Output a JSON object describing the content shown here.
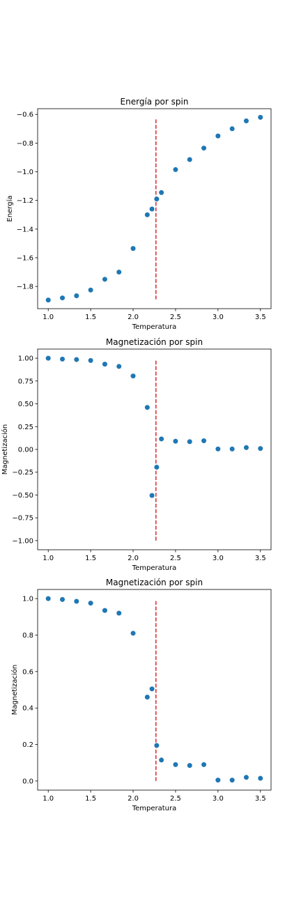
{
  "chart_data": [
    {
      "type": "scatter",
      "title": "Energía por spin",
      "xlabel": "Temperatura",
      "ylabel": "Energía",
      "xlim": [
        0.875,
        3.625
      ],
      "ylim": [
        -1.955,
        -0.56
      ],
      "xticks": [
        1.0,
        1.5,
        2.0,
        2.5,
        3.0,
        3.5
      ],
      "xtick_labels": [
        "1.0",
        "1.5",
        "2.0",
        "2.5",
        "3.0",
        "3.5"
      ],
      "yticks": [
        -1.8,
        -1.6,
        -1.4,
        -1.2,
        -1.0,
        -0.8,
        -0.6
      ],
      "ytick_labels": [
        "−1.8",
        "−1.6",
        "−1.4",
        "−1.2",
        "−1.0",
        "−0.8",
        "−0.6"
      ],
      "marker_color": "#1f77b4",
      "critical_line": {
        "x": 2.269,
        "y": [
          -1.89,
          -0.625
        ],
        "color": "#d62728",
        "style": "dashed"
      },
      "x": [
        1.0,
        1.1667,
        1.3333,
        1.5,
        1.6667,
        1.8333,
        2.0,
        2.1667,
        2.2222,
        2.2778,
        2.3333,
        2.5,
        2.6667,
        2.8333,
        3.0,
        3.1667,
        3.3333,
        3.5
      ],
      "y": [
        -1.895,
        -1.88,
        -1.865,
        -1.825,
        -1.75,
        -1.7,
        -1.535,
        -1.3,
        -1.26,
        -1.19,
        -1.145,
        -0.985,
        -0.915,
        -0.835,
        -0.75,
        -0.7,
        -0.645,
        -0.62
      ]
    },
    {
      "type": "scatter",
      "title": "Magnetización por spin",
      "xlabel": "Temperatura",
      "ylabel": "Magnetización",
      "xlim": [
        0.875,
        3.625
      ],
      "ylim": [
        -1.1,
        1.1
      ],
      "xticks": [
        1.0,
        1.5,
        2.0,
        2.5,
        3.0,
        3.5
      ],
      "xtick_labels": [
        "1.0",
        "1.5",
        "2.0",
        "2.5",
        "3.0",
        "3.5"
      ],
      "yticks": [
        -1.0,
        -0.75,
        -0.5,
        -0.25,
        0.0,
        0.25,
        0.5,
        0.75,
        1.0
      ],
      "ytick_labels": [
        "−1.00",
        "−0.75",
        "−0.50",
        "−0.25",
        "0.00",
        "0.25",
        "0.50",
        "0.75",
        "1.00"
      ],
      "marker_color": "#1f77b4",
      "critical_line": {
        "x": 2.269,
        "y": [
          -1.0,
          0.99
        ],
        "color": "#d62728",
        "style": "dashed"
      },
      "x": [
        1.0,
        1.1667,
        1.3333,
        1.5,
        1.6667,
        1.8333,
        2.0,
        2.1667,
        2.2222,
        2.2778,
        2.3333,
        2.5,
        2.6667,
        2.8333,
        3.0,
        3.1667,
        3.3333,
        3.5
      ],
      "y": [
        1.0,
        0.99,
        0.985,
        0.975,
        0.935,
        0.91,
        0.805,
        0.46,
        -0.505,
        -0.195,
        0.115,
        0.09,
        0.085,
        0.095,
        0.005,
        0.005,
        0.02,
        0.01
      ]
    },
    {
      "type": "scatter",
      "title": "Magnetización por spin",
      "xlabel": "Temperatura",
      "ylabel": "Magnetización",
      "xlim": [
        0.875,
        3.625
      ],
      "ylim": [
        -0.05,
        1.05
      ],
      "xticks": [
        1.0,
        1.5,
        2.0,
        2.5,
        3.0,
        3.5
      ],
      "xtick_labels": [
        "1.0",
        "1.5",
        "2.0",
        "2.5",
        "3.0",
        "3.5"
      ],
      "yticks": [
        0.0,
        0.2,
        0.4,
        0.6,
        0.8,
        1.0
      ],
      "ytick_labels": [
        "0.0",
        "0.2",
        "0.4",
        "0.6",
        "0.8",
        "1.0"
      ],
      "marker_color": "#1f77b4",
      "critical_line": {
        "x": 2.269,
        "y": [
          0.0,
          0.995
        ],
        "color": "#d62728",
        "style": "dashed"
      },
      "x": [
        1.0,
        1.1667,
        1.3333,
        1.5,
        1.6667,
        1.8333,
        2.0,
        2.1667,
        2.2222,
        2.2778,
        2.3333,
        2.5,
        2.6667,
        2.8333,
        3.0,
        3.1667,
        3.3333,
        3.5
      ],
      "y": [
        1.0,
        0.995,
        0.985,
        0.975,
        0.935,
        0.92,
        0.81,
        0.46,
        0.505,
        0.195,
        0.115,
        0.09,
        0.085,
        0.09,
        0.005,
        0.005,
        0.02,
        0.015
      ]
    }
  ]
}
